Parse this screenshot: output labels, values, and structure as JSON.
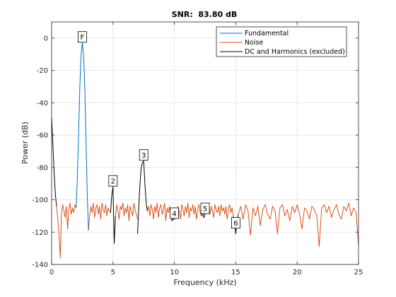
{
  "chart_data": {
    "type": "line",
    "title": "SNR:  83.80 dB",
    "xlabel": "Frequency (kHz)",
    "ylabel": "Power (dB)",
    "xlim": [
      0,
      25
    ],
    "ylim": [
      -140,
      10
    ],
    "xticks": [
      0,
      5,
      10,
      15,
      20,
      25
    ],
    "yticks": [
      -140,
      -120,
      -100,
      -80,
      -60,
      -40,
      -20,
      0
    ],
    "grid": true,
    "legend_position": "top-right",
    "colors": {
      "fundamental": "#0072bd",
      "noise": "#d95319",
      "harmonics": "#000000"
    },
    "series": [
      {
        "name": "Fundamental",
        "color": "#0072bd",
        "x": [
          2.0,
          2.1,
          2.2,
          2.3,
          2.4,
          2.5,
          2.6,
          2.7,
          2.8,
          2.9,
          3.0
        ],
        "y": [
          -105,
          -85,
          -58,
          -30,
          -10,
          -3,
          -10,
          -30,
          -62,
          -95,
          -119
        ]
      },
      {
        "name": "Noise",
        "color": "#d95319",
        "x": [
          0.4,
          0.5,
          0.6,
          0.7,
          0.8,
          0.9,
          1.0,
          1.1,
          1.2,
          1.3,
          1.4,
          1.5,
          1.6,
          1.7,
          1.8,
          1.9,
          2.0
        ],
        "y": [
          -104,
          -112,
          -121,
          -136,
          -108,
          -103,
          -107,
          -111,
          -104,
          -118,
          -106,
          -102,
          -109,
          -105,
          -108,
          -103,
          -105
        ],
        "segments": [
          {
            "x": [
              3.0,
              3.1,
              3.2,
              3.3,
              3.4,
              3.5,
              3.6,
              3.7,
              3.8,
              3.9,
              4.0,
              4.1,
              4.2,
              4.3,
              4.4,
              4.5,
              4.6,
              4.7,
              4.8
            ],
            "y": [
              -119,
              -110,
              -104,
              -108,
              -102,
              -111,
              -105,
              -103,
              -109,
              -104,
              -112,
              -102,
              -106,
              -108,
              -103,
              -110,
              -105,
              -107,
              -108
            ]
          },
          {
            "x": [
              5.2,
              5.3,
              5.4,
              5.5,
              5.6,
              5.7,
              5.8,
              5.9,
              6.0,
              6.1,
              6.2,
              6.3,
              6.4,
              6.5,
              6.6,
              6.7,
              6.8,
              6.9,
              7.0
            ],
            "y": [
              -110,
              -103,
              -107,
              -112,
              -104,
              -106,
              -102,
              -110,
              -105,
              -108,
              -103,
              -113,
              -104,
              -107,
              -110,
              -102,
              -106,
              -109,
              -112
            ]
          },
          {
            "x": [
              7.8,
              7.9,
              8.0,
              8.1,
              8.2,
              8.3,
              8.4,
              8.5,
              8.6,
              8.7,
              8.8,
              8.9,
              9.0,
              9.1,
              9.2,
              9.3,
              9.4,
              9.5,
              9.6,
              9.7
            ],
            "y": [
              -107,
              -104,
              -110,
              -103,
              -106,
              -112,
              -104,
              -108,
              -102,
              -111,
              -105,
              -103,
              -109,
              -106,
              -102,
              -113,
              -105,
              -108,
              -104,
              -110
            ],
            "note": ""
          },
          {
            "x": [
              10.2,
              10.3,
              10.4,
              10.5,
              10.6,
              10.7,
              10.8,
              10.9,
              11.0,
              11.1,
              11.2,
              11.3,
              11.4,
              11.5,
              11.6,
              11.7,
              11.8,
              11.9,
              12.0,
              12.1,
              12.2
            ],
            "y": [
              -109,
              -104,
              -107,
              -112,
              -103,
              -106,
              -110,
              -104,
              -108,
              -102,
              -111,
              -105,
              -107,
              -103,
              -109,
              -104,
              -112,
              -106,
              -103,
              -108,
              -110
            ]
          },
          {
            "x": [
              12.7,
              12.8,
              12.9,
              13.0,
              13.1,
              13.2,
              13.3,
              13.4,
              13.5,
              13.6,
              13.7,
              13.8,
              13.9,
              14.0,
              14.1,
              14.2,
              14.3,
              14.4,
              14.5,
              14.6,
              14.7,
              14.8
            ],
            "y": [
              -106,
              -103,
              -109,
              -104,
              -107,
              -111,
              -103,
              -106,
              -108,
              -104,
              -110,
              -103,
              -107,
              -105,
              -109,
              -104,
              -112,
              -106,
              -103,
              -108,
              -105,
              -110
            ]
          },
          {
            "x": [
              15.2,
              15.4,
              15.6,
              15.8,
              16.0,
              16.2,
              16.4,
              16.6,
              16.8,
              17.0,
              17.2,
              17.4,
              17.6,
              17.8,
              18.0,
              18.2,
              18.4,
              18.6,
              18.8,
              19.0,
              19.2,
              19.4,
              19.6,
              19.8,
              20.0,
              20.2,
              20.4,
              20.6,
              20.8,
              21.0,
              21.2,
              21.4,
              21.6,
              21.8,
              22.0,
              22.2,
              22.4,
              22.6,
              22.8,
              23.0,
              23.2,
              23.4,
              23.6,
              23.8,
              24.0,
              24.2,
              24.4,
              24.6,
              24.8,
              25.0
            ],
            "y": [
              -109,
              -104,
              -112,
              -103,
              -107,
              -122,
              -105,
              -110,
              -104,
              -116,
              -106,
              -103,
              -109,
              -112,
              -104,
              -107,
              -121,
              -105,
              -103,
              -110,
              -106,
              -113,
              -104,
              -108,
              -103,
              -109,
              -118,
              -105,
              -107,
              -112,
              -104,
              -106,
              -110,
              -129,
              -105,
              -103,
              -108,
              -104,
              -111,
              -106,
              -103,
              -109,
              -112,
              -104,
              -107,
              -102,
              -110,
              -105,
              -108,
              -128
            ]
          }
        ]
      },
      {
        "name": "DC and Harmonics (excluded)",
        "color": "#000000",
        "x": [
          0.0,
          0.1,
          0.2,
          0.3,
          0.4
        ],
        "y": [
          -49,
          -65,
          -83,
          -96,
          -104
        ],
        "segments": [
          {
            "x": [
              4.8,
              4.9,
              5.0,
              5.1,
              5.2
            ],
            "y": [
              -108,
              -97,
              -92,
              -127,
              -110
            ]
          },
          {
            "x": [
              7.0,
              7.1,
              7.2,
              7.3,
              7.4,
              7.5,
              7.6,
              7.7,
              7.8
            ],
            "y": [
              -121,
              -104,
              -90,
              -80,
              -77,
              -76,
              -90,
              -102,
              -107
            ]
          },
          {
            "x": [
              9.7,
              9.8,
              9.9,
              10.0,
              10.1,
              10.2
            ],
            "y": [
              -110,
              -113,
              -112,
              -112,
              -111,
              -109
            ]
          },
          {
            "x": [
              12.2,
              12.3,
              12.4,
              12.5,
              12.6,
              12.7
            ],
            "y": [
              -110,
              -108,
              -111,
              -109,
              -107,
              -106
            ]
          },
          {
            "x": [
              14.8,
              14.9,
              15.0,
              15.1,
              15.2
            ],
            "y": [
              -110,
              -115,
              -121,
              -114,
              -109
            ]
          }
        ]
      }
    ],
    "annotations": [
      {
        "text": "F",
        "x": 2.5,
        "y": -3,
        "color": "#0072bd"
      },
      {
        "text": "2",
        "x": 5.0,
        "y": -92,
        "color": "#000000"
      },
      {
        "text": "3",
        "x": 7.5,
        "y": -76,
        "color": "#000000"
      },
      {
        "text": "4",
        "x": 10.0,
        "y": -112,
        "color": "#000000"
      },
      {
        "text": "5",
        "x": 12.5,
        "y": -109,
        "color": "#000000"
      },
      {
        "text": "6",
        "x": 15.0,
        "y": -118,
        "color": "#000000"
      }
    ]
  }
}
